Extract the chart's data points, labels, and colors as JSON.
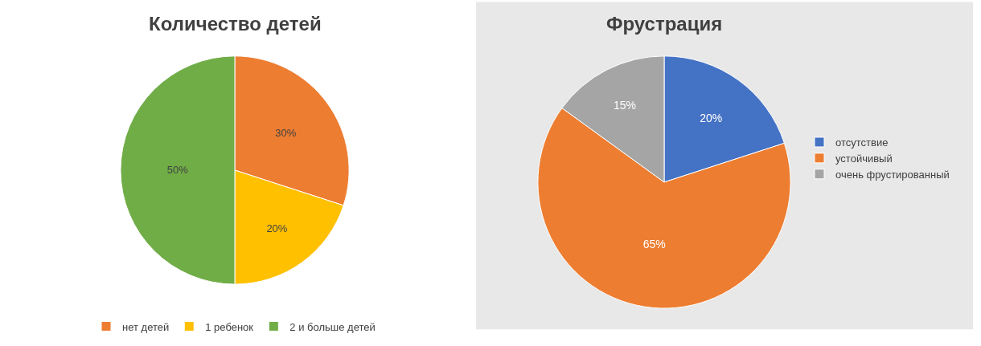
{
  "chart_data": [
    {
      "type": "pie",
      "title": "Количество детей",
      "categories": [
        "нет детей",
        "1 ребенок",
        "2 и больше детей"
      ],
      "values": [
        30,
        20,
        50
      ],
      "colors": [
        "#ed7d31",
        "#ffc000",
        "#70ad47"
      ],
      "value_labels": [
        "30%",
        "20%",
        "50%"
      ],
      "legend": "bottom"
    },
    {
      "type": "pie",
      "title": "Фрустрация",
      "categories": [
        "отсутствие",
        "устойчивый",
        "очень фрустированный"
      ],
      "values": [
        20,
        65,
        15
      ],
      "colors": [
        "#4472c4",
        "#ed7d31",
        "#a5a5a5"
      ],
      "value_labels": [
        "20%",
        "65%",
        "15%"
      ],
      "legend": "right"
    }
  ]
}
